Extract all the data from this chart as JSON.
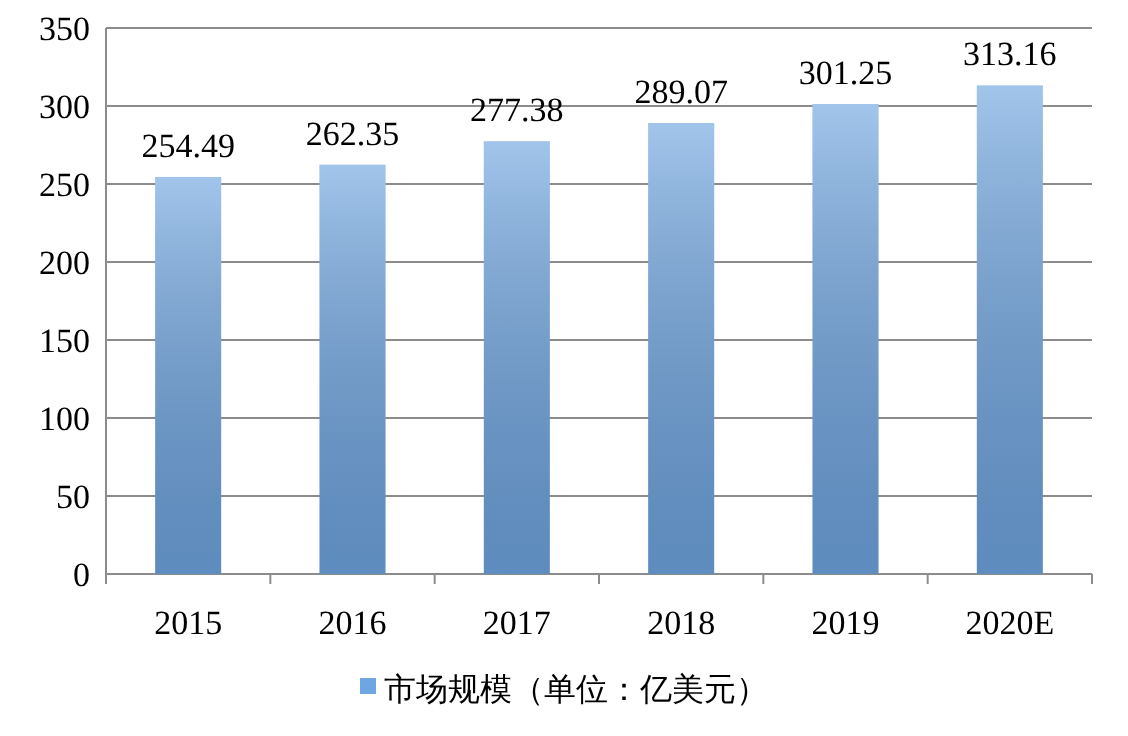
{
  "chart_data": {
    "type": "bar",
    "categories": [
      "2015",
      "2016",
      "2017",
      "2018",
      "2019",
      "2020E"
    ],
    "series": [
      {
        "name": "市场规模（单位：亿美元）",
        "color": "#6fa5e0",
        "values": [
          254.49,
          262.35,
          277.38,
          289.07,
          301.25,
          313.16
        ]
      }
    ],
    "ylim": [
      0,
      350
    ],
    "yticks": [
      0,
      50,
      100,
      150,
      200,
      250,
      300,
      350
    ],
    "grid": "y",
    "legend": "bottom",
    "data_labels": true
  }
}
